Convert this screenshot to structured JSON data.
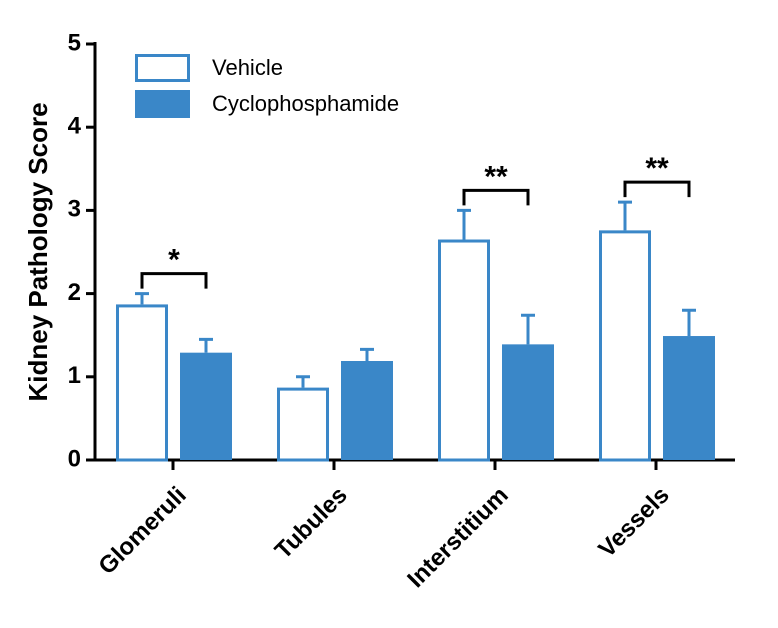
{
  "chart_data": {
    "type": "bar",
    "y_label": "Kidney Pathology Score",
    "categories": [
      "Glomeruli",
      "Tubules",
      "Interstitium",
      "Vessels"
    ],
    "series": [
      {
        "name": "Vehicle",
        "color": "#3a87c8",
        "style": "outline",
        "values": [
          1.87,
          0.87,
          2.65,
          2.76
        ],
        "errors": [
          0.13,
          0.13,
          0.35,
          0.34
        ]
      },
      {
        "name": "Cyclophosphamide",
        "color": "#3a87c8",
        "style": "filled",
        "values": [
          1.29,
          1.19,
          1.39,
          1.49
        ],
        "errors": [
          0.16,
          0.14,
          0.35,
          0.31
        ]
      }
    ],
    "significance": [
      "*",
      null,
      "**",
      "**"
    ],
    "ylim": [
      0,
      5
    ],
    "yticks": [
      0,
      1,
      2,
      3,
      4,
      5
    ],
    "legend": "top-left"
  }
}
